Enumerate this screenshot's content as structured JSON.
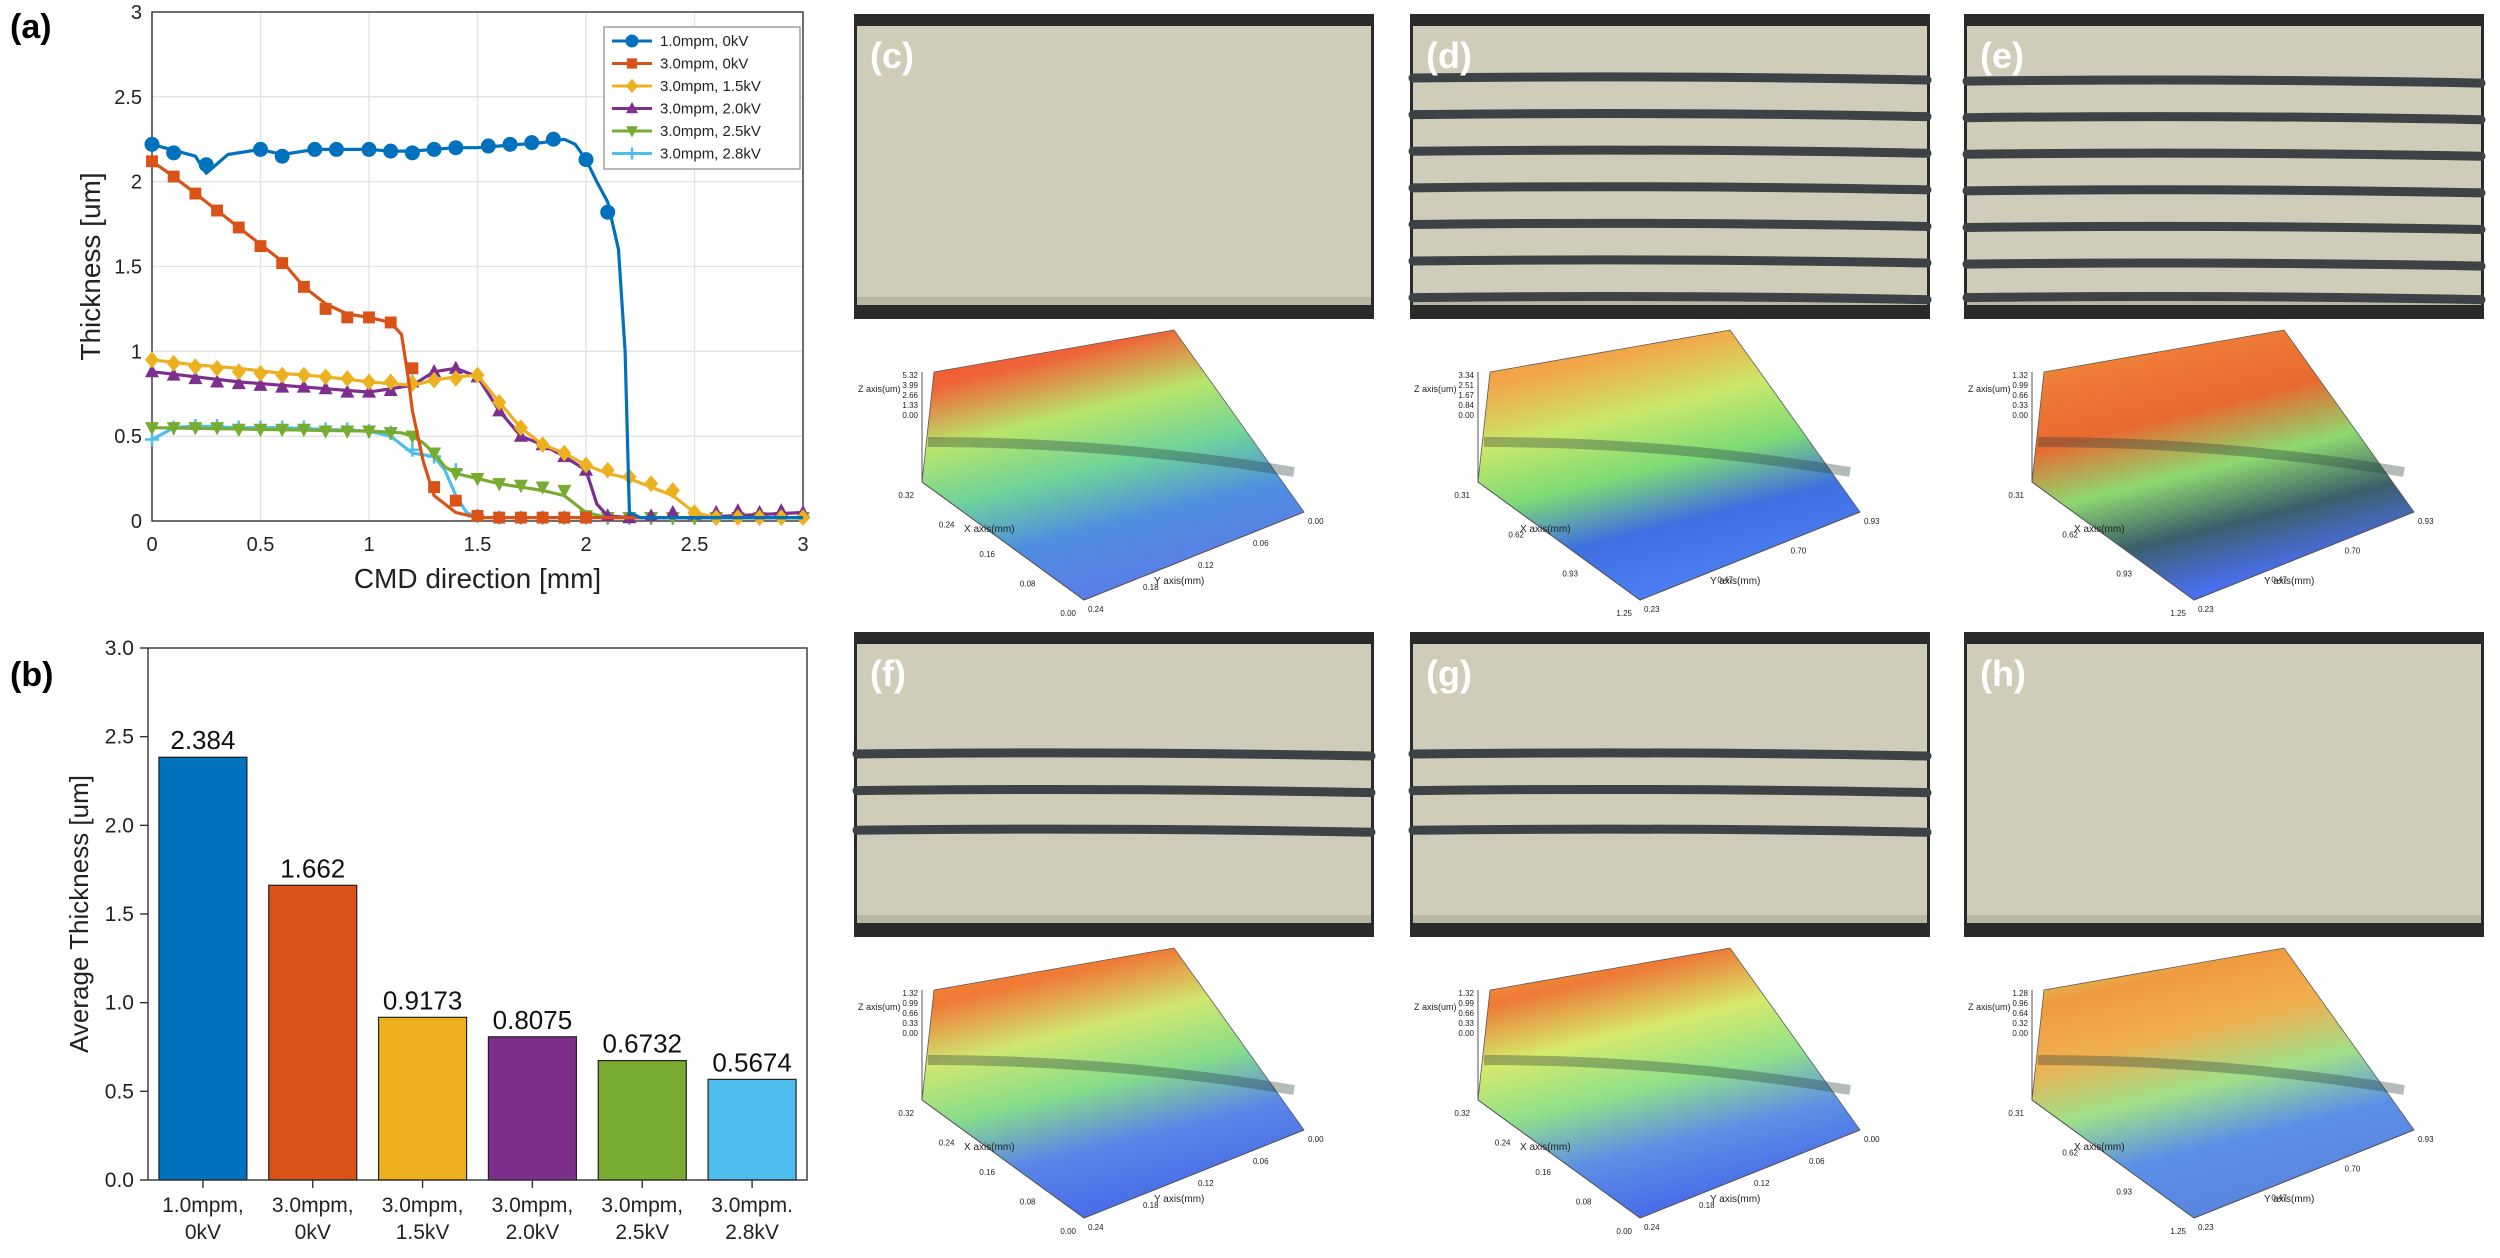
{
  "panel_labels": {
    "a": "(a)",
    "b": "(b)",
    "c": "(c)",
    "d": "(d)",
    "e": "(e)",
    "f": "(f)",
    "g": "(g)",
    "h": "(h)"
  },
  "colors": {
    "blue": "#0072BD",
    "orange": "#D95319",
    "yellow": "#EDB120",
    "purple": "#7E2F8E",
    "green": "#77AC30",
    "cyan": "#4DBEEE",
    "belt": "#cfccba",
    "stripe": "#3d4247",
    "frame": "#2a2a2a"
  },
  "chart_data": [
    {
      "type": "line",
      "title": "",
      "xlabel": "CMD direction [mm]",
      "ylabel": "Thickness [um]",
      "xlim": [
        0,
        3
      ],
      "ylim": [
        0,
        3
      ],
      "grid": true,
      "legend": "top-right",
      "xticks": [
        "0",
        "0.5",
        "1",
        "1.5",
        "2",
        "2.5",
        "3"
      ],
      "yticks": [
        "0",
        "0.5",
        "1",
        "1.5",
        "2",
        "2.5",
        "3"
      ],
      "series": [
        {
          "name": "1.0mpm, 0kV",
          "color": "#0072BD",
          "marker": "circle",
          "x": [
            0,
            0.2,
            0.25,
            0.35,
            0.5,
            0.6,
            0.75,
            0.85,
            1.0,
            1.1,
            1.2,
            1.3,
            1.4,
            1.5,
            1.6,
            1.7,
            1.8,
            1.9,
            1.95,
            2.0,
            2.05,
            2.1,
            2.15,
            2.18,
            2.2,
            2.25,
            2.3,
            2.5,
            2.7,
            2.9,
            3.0
          ],
          "y": [
            2.22,
            2.15,
            2.05,
            2.16,
            2.19,
            2.16,
            2.19,
            2.19,
            2.19,
            2.18,
            2.18,
            2.19,
            2.2,
            2.2,
            2.21,
            2.22,
            2.23,
            2.25,
            2.22,
            2.13,
            2.0,
            1.88,
            1.6,
            1.0,
            0.05,
            0.02,
            0.02,
            0.02,
            0.02,
            0.02,
            0.02
          ],
          "mx": [
            0,
            0.1,
            0.25,
            0.5,
            0.6,
            0.75,
            0.85,
            1.0,
            1.1,
            1.2,
            1.3,
            1.4,
            1.55,
            1.65,
            1.75,
            1.85,
            2.0,
            2.1
          ],
          "my": [
            2.22,
            2.17,
            2.1,
            2.19,
            2.15,
            2.19,
            2.19,
            2.19,
            2.18,
            2.17,
            2.19,
            2.2,
            2.21,
            2.22,
            2.23,
            2.25,
            2.13,
            1.82
          ]
        },
        {
          "name": "3.0mpm, 0kV",
          "color": "#D95319",
          "marker": "square",
          "x": [
            0,
            0.1,
            0.2,
            0.3,
            0.4,
            0.5,
            0.6,
            0.7,
            0.8,
            0.9,
            1.0,
            1.1,
            1.15,
            1.18,
            1.2,
            1.25,
            1.3,
            1.4,
            1.5,
            2.0,
            2.5,
            3.0
          ],
          "y": [
            2.12,
            2.03,
            1.93,
            1.83,
            1.73,
            1.63,
            1.53,
            1.38,
            1.28,
            1.22,
            1.2,
            1.17,
            1.1,
            0.85,
            0.65,
            0.35,
            0.15,
            0.05,
            0.02,
            0.02,
            0.02,
            0.02
          ],
          "mx": [
            0,
            0.1,
            0.2,
            0.3,
            0.4,
            0.5,
            0.6,
            0.7,
            0.8,
            0.9,
            1.0,
            1.1,
            1.2,
            1.3,
            1.4,
            1.5,
            1.6,
            1.7,
            1.8,
            1.9,
            2.0
          ],
          "my": [
            2.12,
            2.03,
            1.93,
            1.83,
            1.73,
            1.62,
            1.52,
            1.38,
            1.25,
            1.2,
            1.2,
            1.17,
            0.9,
            0.2,
            0.12,
            0.03,
            0.02,
            0.02,
            0.02,
            0.02,
            0.02
          ]
        },
        {
          "name": "3.0mpm, 1.5kV",
          "color": "#EDB120",
          "marker": "diamond",
          "x": [
            0,
            0.2,
            0.4,
            0.6,
            0.8,
            1.0,
            1.2,
            1.3,
            1.4,
            1.5,
            1.6,
            1.7,
            1.8,
            1.9,
            2.0,
            2.1,
            2.2,
            2.3,
            2.4,
            2.5,
            2.6,
            2.8,
            3.0
          ],
          "y": [
            0.95,
            0.92,
            0.9,
            0.87,
            0.85,
            0.82,
            0.8,
            0.83,
            0.85,
            0.86,
            0.7,
            0.55,
            0.45,
            0.4,
            0.33,
            0.28,
            0.25,
            0.2,
            0.15,
            0.05,
            0.02,
            0.02,
            0.02
          ],
          "mx": [
            0,
            0.1,
            0.2,
            0.3,
            0.4,
            0.5,
            0.6,
            0.7,
            0.8,
            0.9,
            1.0,
            1.1,
            1.2,
            1.3,
            1.4,
            1.5,
            1.6,
            1.7,
            1.8,
            1.9,
            2.0,
            2.1,
            2.2,
            2.3,
            2.4,
            2.5,
            2.6,
            2.7,
            2.8,
            2.9,
            3.0
          ],
          "my": [
            0.95,
            0.93,
            0.91,
            0.9,
            0.88,
            0.87,
            0.86,
            0.86,
            0.85,
            0.84,
            0.82,
            0.82,
            0.81,
            0.83,
            0.84,
            0.86,
            0.7,
            0.55,
            0.45,
            0.4,
            0.33,
            0.3,
            0.26,
            0.22,
            0.18,
            0.05,
            0.02,
            0.02,
            0.02,
            0.02,
            0.02
          ]
        },
        {
          "name": "3.0mpm, 2.0kV",
          "color": "#7E2F8E",
          "marker": "triangle",
          "x": [
            0,
            0.2,
            0.4,
            0.6,
            0.8,
            1.0,
            1.2,
            1.3,
            1.4,
            1.5,
            1.6,
            1.7,
            1.8,
            1.9,
            2.0,
            2.05,
            2.1,
            2.2,
            2.5,
            3.0
          ],
          "y": [
            0.88,
            0.85,
            0.82,
            0.8,
            0.78,
            0.76,
            0.8,
            0.88,
            0.9,
            0.85,
            0.65,
            0.5,
            0.45,
            0.38,
            0.3,
            0.1,
            0.03,
            0.02,
            0.02,
            0.05
          ],
          "mx": [
            0,
            0.1,
            0.2,
            0.3,
            0.4,
            0.5,
            0.6,
            0.7,
            0.8,
            0.9,
            1.0,
            1.1,
            1.2,
            1.3,
            1.4,
            1.5,
            1.6,
            1.7,
            1.8,
            1.9,
            2.0,
            2.1,
            2.2,
            2.3,
            2.4,
            2.5,
            2.6,
            2.7,
            2.8,
            2.9,
            3.0
          ],
          "my": [
            0.88,
            0.86,
            0.84,
            0.82,
            0.81,
            0.8,
            0.79,
            0.79,
            0.78,
            0.76,
            0.76,
            0.77,
            0.82,
            0.88,
            0.9,
            0.85,
            0.65,
            0.5,
            0.45,
            0.38,
            0.3,
            0.03,
            0.02,
            0.03,
            0.05,
            0.04,
            0.05,
            0.06,
            0.05,
            0.06,
            0.05
          ]
        },
        {
          "name": "3.0mpm, 2.5kV",
          "color": "#77AC30",
          "marker": "triangle-down",
          "x": [
            0,
            0.5,
            1.0,
            1.15,
            1.2,
            1.25,
            1.3,
            1.35,
            1.4,
            1.5,
            1.6,
            1.7,
            1.8,
            1.9,
            2.0,
            2.1,
            2.2,
            3.0
          ],
          "y": [
            0.55,
            0.54,
            0.53,
            0.52,
            0.5,
            0.46,
            0.4,
            0.32,
            0.28,
            0.25,
            0.22,
            0.2,
            0.18,
            0.15,
            0.05,
            0.02,
            0.02,
            0.02
          ],
          "mx": [
            0,
            0.1,
            0.2,
            0.3,
            0.4,
            0.5,
            0.6,
            0.7,
            0.8,
            0.9,
            1.0,
            1.1,
            1.2,
            1.3,
            1.4,
            1.5,
            1.6,
            1.7,
            1.8,
            1.9,
            2.0,
            2.1,
            2.2,
            2.3,
            2.4,
            2.5,
            2.6,
            2.7,
            2.8,
            2.9,
            3.0
          ],
          "my": [
            0.55,
            0.55,
            0.55,
            0.55,
            0.54,
            0.54,
            0.54,
            0.54,
            0.53,
            0.53,
            0.53,
            0.52,
            0.5,
            0.4,
            0.28,
            0.25,
            0.22,
            0.21,
            0.2,
            0.18,
            0.03,
            0.02,
            0.02,
            0.02,
            0.02,
            0.02,
            0.02,
            0.02,
            0.02,
            0.02,
            0.02
          ]
        },
        {
          "name": "3.0mpm, 2.8kV",
          "color": "#4DBEEE",
          "marker": "plus",
          "x": [
            0,
            0.1,
            0.2,
            0.4,
            0.6,
            0.8,
            1.0,
            1.1,
            1.15,
            1.2,
            1.3,
            1.35,
            1.4,
            1.45,
            1.5,
            2.0,
            2.5,
            3.0
          ],
          "y": [
            0.48,
            0.55,
            0.56,
            0.55,
            0.55,
            0.54,
            0.53,
            0.5,
            0.45,
            0.4,
            0.38,
            0.3,
            0.15,
            0.05,
            0.02,
            0.02,
            0.02,
            0.02
          ],
          "mx": [
            0,
            0.1,
            0.2,
            0.3,
            0.4,
            0.5,
            0.6,
            0.7,
            0.8,
            0.9,
            1.0,
            1.1,
            1.2,
            1.3,
            1.4,
            1.5,
            1.6,
            1.7,
            1.8,
            1.9,
            2.0,
            2.1,
            2.2,
            2.3,
            2.4,
            2.5,
            2.6,
            2.7,
            2.8,
            2.9,
            3.0
          ],
          "my": [
            0.48,
            0.55,
            0.56,
            0.56,
            0.55,
            0.55,
            0.55,
            0.55,
            0.54,
            0.54,
            0.53,
            0.52,
            0.42,
            0.38,
            0.3,
            0.03,
            0.02,
            0.02,
            0.02,
            0.02,
            0.02,
            0.02,
            0.02,
            0.02,
            0.02,
            0.02,
            0.02,
            0.02,
            0.02,
            0.02,
            0.02
          ]
        }
      ]
    },
    {
      "type": "bar",
      "title": "",
      "xlabel": "",
      "ylabel": "Average Thickness [um]",
      "ylim": [
        0,
        3
      ],
      "yticks": [
        "0.0",
        "0.5",
        "1.0",
        "1.5",
        "2.0",
        "2.5",
        "3.0"
      ],
      "categories": [
        [
          "1.0mpm,",
          "0kV"
        ],
        [
          "3.0mpm,",
          "0kV"
        ],
        [
          "3.0mpm,",
          "1.5kV"
        ],
        [
          "3.0mpm,",
          "2.0kV"
        ],
        [
          "3.0mpm,",
          "2.5kV"
        ],
        [
          "3.0mpm.",
          "2.8kV"
        ]
      ],
      "values": [
        2.384,
        1.662,
        0.9173,
        0.8075,
        0.6732,
        0.5674
      ],
      "value_labels": [
        "2.384",
        "1.662",
        "0.9173",
        "0.8075",
        "0.6732",
        "0.5674"
      ],
      "colors": [
        "#0072BD",
        "#D95319",
        "#EDB120",
        "#7E2F8E",
        "#77AC30",
        "#4DBEEE"
      ]
    }
  ],
  "photos": [
    {
      "label": "(c)",
      "stripes": []
    },
    {
      "label": "(d)",
      "stripes": [
        0.21,
        0.33,
        0.45,
        0.57,
        0.69,
        0.81,
        0.93
      ]
    },
    {
      "label": "(e)",
      "stripes": [
        0.22,
        0.34,
        0.46,
        0.58,
        0.7,
        0.82,
        0.93
      ]
    },
    {
      "label": "(f)",
      "stripes": [
        0.4,
        0.52,
        0.65
      ]
    },
    {
      "label": "(g)",
      "stripes": [
        0.4,
        0.52,
        0.65
      ]
    },
    {
      "label": "(h)",
      "stripes": []
    }
  ],
  "surfaces": [
    {
      "z_axis": "Z axis(um)",
      "x_axis": "X axis(mm)",
      "y_axis": "Y axis(mm)",
      "z_ticks": [
        "5.32",
        "3.99",
        "2.66",
        "1.33",
        "0.00"
      ],
      "x_ticks": [
        "0.32",
        "0.24",
        "0.16",
        "0.08",
        "0.00"
      ],
      "y_ticks": [
        "0.24",
        "0.18",
        "0.12",
        "0.06",
        "0.00"
      ],
      "grad": [
        "#ec4b2e",
        "#f06438",
        "#b8e66a",
        "#6fd39a",
        "#4f8ee0",
        "#5a7fe6"
      ]
    },
    {
      "z_axis": "Z axis(um)",
      "x_axis": "X axis(mm)",
      "y_axis": "Y axis(mm)",
      "z_ticks": [
        "3.34",
        "2.51",
        "1.67",
        "0.84",
        "0.00"
      ],
      "x_ticks": [
        "0.31",
        "0.62",
        "0.93",
        "1.25"
      ],
      "y_ticks": [
        "0.23",
        "0.47",
        "0.70",
        "0.93"
      ],
      "grad": [
        "#f08a3a",
        "#f2a84a",
        "#c9e86a",
        "#7edb76",
        "#3f6fe0",
        "#4a7ef0"
      ]
    },
    {
      "z_axis": "Z axis(um)",
      "x_axis": "X axis(mm)",
      "y_axis": "Y axis(mm)",
      "z_ticks": [
        "1.32",
        "0.99",
        "0.66",
        "0.33",
        "0.00"
      ],
      "x_ticks": [
        "0.31",
        "0.62",
        "0.93",
        "1.25"
      ],
      "y_ticks": [
        "0.23",
        "0.47",
        "0.70",
        "0.93"
      ],
      "grad": [
        "#f0a040",
        "#ee7a35",
        "#e86a30",
        "#8ed970",
        "#3b5f6a",
        "#4a6ff0"
      ]
    },
    {
      "z_axis": "Z axis(um)",
      "x_axis": "X axis(mm)",
      "y_axis": "Y axis(mm)",
      "z_ticks": [
        "1.32",
        "0.99",
        "0.66",
        "0.33",
        "0.00"
      ],
      "x_ticks": [
        "0.32",
        "0.24",
        "0.16",
        "0.08",
        "0.00"
      ],
      "y_ticks": [
        "0.24",
        "0.18",
        "0.12",
        "0.06",
        "0.00"
      ],
      "grad": [
        "#ef8a3a",
        "#f07a35",
        "#cfe870",
        "#86dc8a",
        "#5b86e8",
        "#4a6fe8"
      ]
    },
    {
      "z_axis": "Z axis(um)",
      "x_axis": "X axis(mm)",
      "y_axis": "Y axis(mm)",
      "z_ticks": [
        "1.32",
        "0.99",
        "0.66",
        "0.33",
        "0.00"
      ],
      "x_ticks": [
        "0.32",
        "0.24",
        "0.16",
        "0.08",
        "0.00"
      ],
      "y_ticks": [
        "0.24",
        "0.18",
        "0.12",
        "0.06",
        "0.00"
      ],
      "grad": [
        "#f2a84a",
        "#ee7a35",
        "#d6ea6c",
        "#8fe08a",
        "#5e8fe6",
        "#4a6fe8"
      ]
    },
    {
      "z_axis": "Z axis(um)",
      "x_axis": "X axis(mm)",
      "y_axis": "Y axis(mm)",
      "z_ticks": [
        "1.28",
        "0.96",
        "0.64",
        "0.32",
        "0.00"
      ],
      "x_ticks": [
        "0.31",
        "0.62",
        "0.93",
        "1.25"
      ],
      "y_ticks": [
        "0.23",
        "0.47",
        "0.70",
        "0.93"
      ],
      "grad": [
        "#c8e868",
        "#f09a40",
        "#f0b050",
        "#9fe08a",
        "#5a8fe8",
        "#5a86e0"
      ]
    }
  ]
}
